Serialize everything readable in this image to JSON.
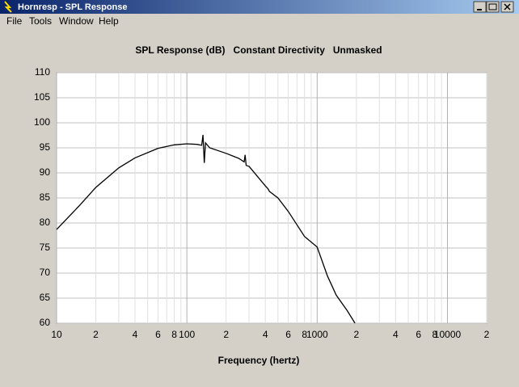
{
  "window": {
    "title": "Hornresp - SPL Response",
    "menu": [
      "File",
      "Tools",
      "Window",
      "Help"
    ]
  },
  "chart_data": {
    "type": "line",
    "title": "SPL Response (dB)   Constant Directivity   Unmasked",
    "x_label": "Frequency (hertz)",
    "xlim": [
      10,
      20000
    ],
    "xscale": "log",
    "xticks": [
      10,
      {
        "value": 20,
        "label": "2"
      },
      {
        "value": 40,
        "label": "4"
      },
      {
        "value": 60,
        "label": "6"
      },
      {
        "value": 80,
        "label": "8"
      },
      100,
      {
        "value": 200,
        "label": "2"
      },
      {
        "value": 400,
        "label": "4"
      },
      {
        "value": 600,
        "label": "6"
      },
      {
        "value": 800,
        "label": "8"
      },
      1000,
      {
        "value": 2000,
        "label": "2"
      },
      {
        "value": 4000,
        "label": "4"
      },
      {
        "value": 6000,
        "label": "6"
      },
      {
        "value": 8000,
        "label": "8"
      },
      10000,
      {
        "value": 20000,
        "label": "2"
      }
    ],
    "xminorticks": [
      30,
      50,
      70,
      90,
      300,
      500,
      700,
      900,
      3000,
      5000,
      7000,
      9000
    ],
    "ylim": [
      60,
      110
    ],
    "yticks": [
      60,
      65,
      70,
      75,
      80,
      85,
      90,
      95,
      100,
      105,
      110
    ],
    "grid": true,
    "x": [
      10,
      15,
      20,
      30,
      40,
      60,
      80,
      100,
      120,
      130,
      133,
      136,
      139,
      150,
      200,
      250,
      275,
      280,
      285,
      300,
      400,
      420,
      430,
      500,
      600,
      800,
      1000,
      1200,
      1400,
      1700,
      1950
    ],
    "series": [
      {
        "color": "#000000",
        "values": [
          78.7,
          83.5,
          87.1,
          91.0,
          93.0,
          94.9,
          95.6,
          95.8,
          95.7,
          95.5,
          97.6,
          92.0,
          96.0,
          95.0,
          93.9,
          92.9,
          92.2,
          93.6,
          91.5,
          91.3,
          87.4,
          86.8,
          86.3,
          85.0,
          82.3,
          77.3,
          75.2,
          69.4,
          65.6,
          62.5,
          60.0
        ]
      }
    ]
  }
}
